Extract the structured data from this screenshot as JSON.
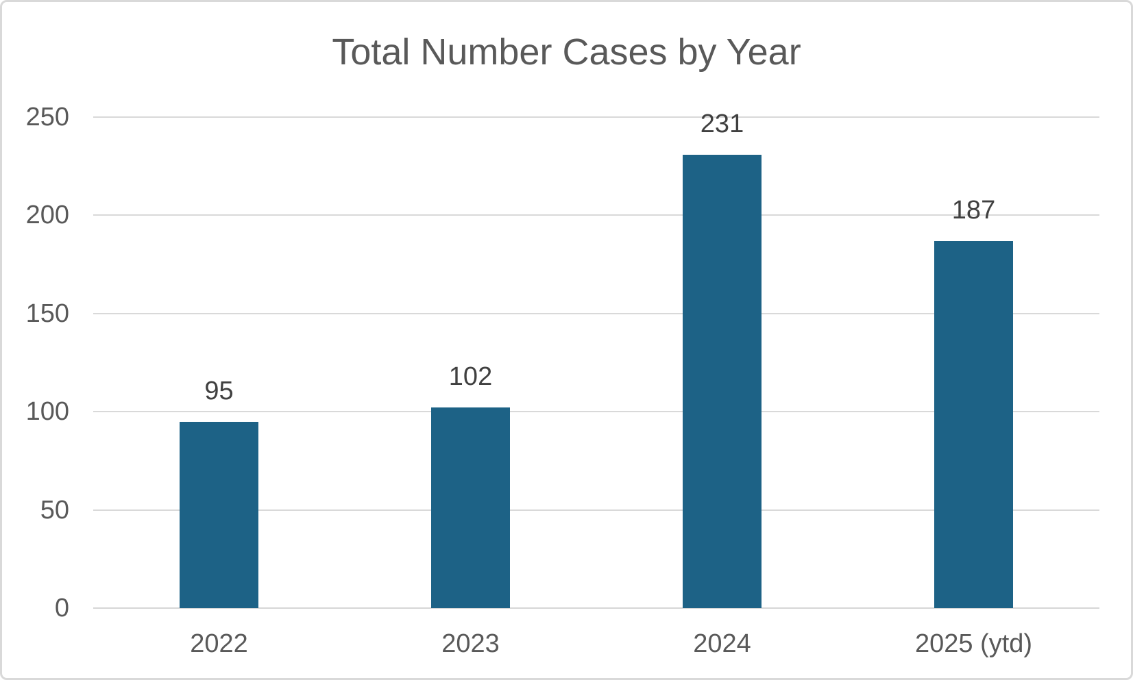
{
  "frame": {
    "background": "#ffffff",
    "border_color": "#d9d9d9"
  },
  "chart_data": {
    "type": "bar",
    "title": "Total Number Cases by Year",
    "categories": [
      "2022",
      "2023",
      "2024",
      "2025 (ytd)"
    ],
    "values": [
      95,
      102,
      231,
      187
    ],
    "data_labels": [
      "95",
      "102",
      "231",
      "187"
    ],
    "xlabel": "",
    "ylabel": "",
    "ylim": [
      0,
      250
    ],
    "yticks": [
      0,
      50,
      100,
      150,
      200,
      250
    ],
    "grid": "horizontal-on",
    "legend": "none",
    "colors": {
      "bar_fill": "#1d6286",
      "gridline": "#d9d9d9",
      "axis_line": "#d6d6d6",
      "title_text": "#595959",
      "tick_label_text": "#595959",
      "data_label_text": "#404040"
    }
  }
}
